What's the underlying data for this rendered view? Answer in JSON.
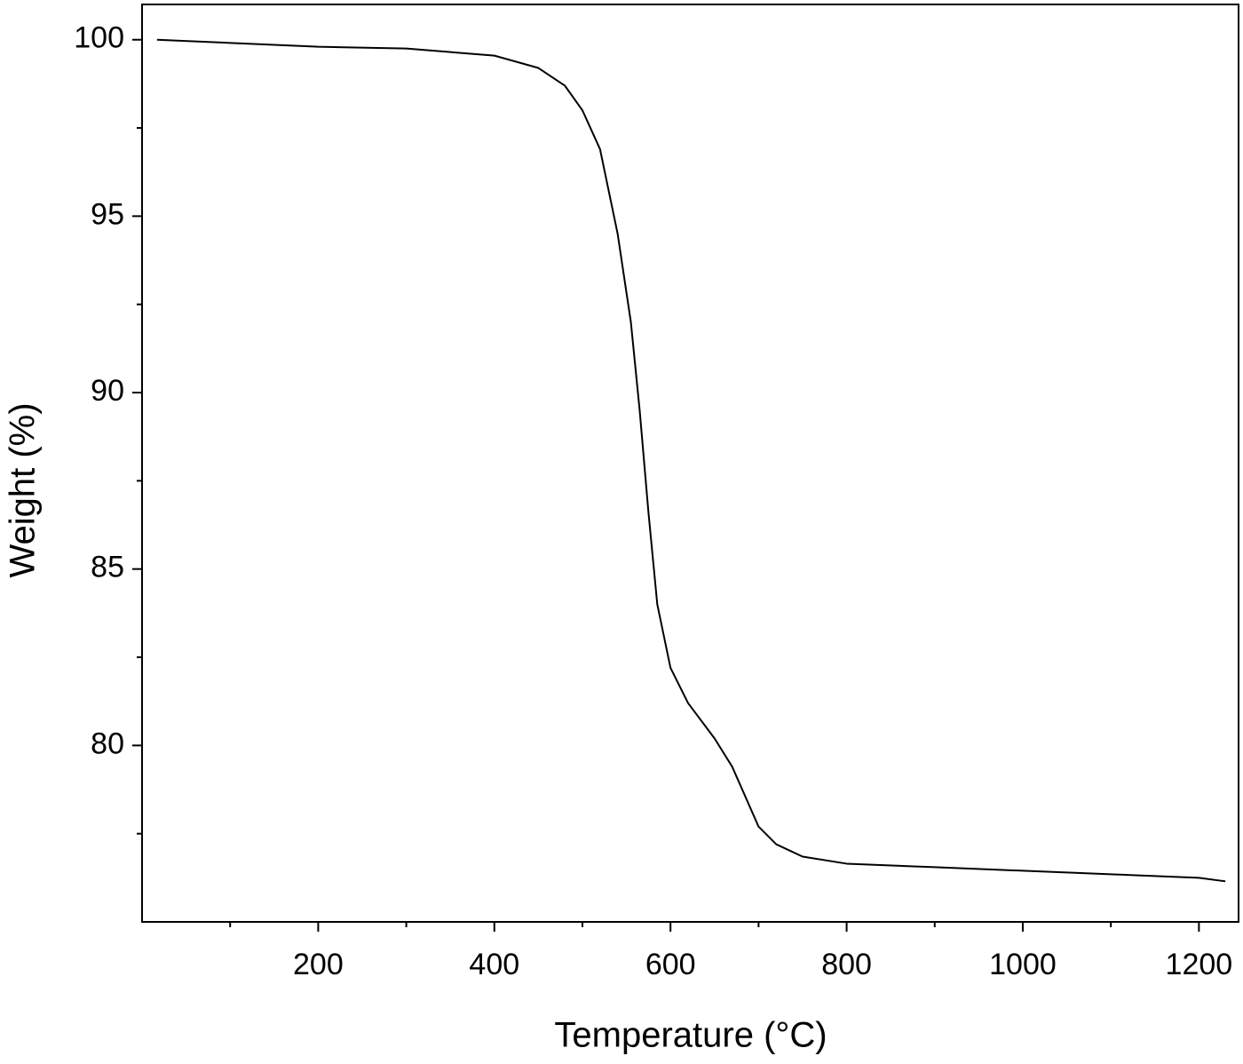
{
  "chart_data": {
    "type": "line",
    "x_label": "Temperature (°C)",
    "y_label": "Weight (%)",
    "xlim": [
      0,
      1245
    ],
    "ylim": [
      75,
      101
    ],
    "xticks": [
      200,
      400,
      600,
      800,
      1000,
      1200
    ],
    "yticks": [
      80,
      85,
      90,
      95,
      100
    ],
    "xminorticks": [
      100,
      300,
      500,
      700,
      900,
      1100
    ],
    "yminorticks": [
      77.5,
      82.5,
      87.5,
      92.5,
      97.5
    ],
    "grid": false,
    "series": [
      {
        "color": "#000000",
        "x": [
          17,
          200,
          300,
          400,
          450,
          480,
          500,
          520,
          540,
          555,
          565,
          575,
          585,
          600,
          620,
          650,
          670,
          700,
          720,
          750,
          800,
          900,
          1000,
          1100,
          1200,
          1230
        ],
        "values": [
          100.0,
          99.8,
          99.75,
          99.55,
          99.2,
          98.7,
          98.0,
          96.9,
          94.5,
          92.0,
          89.5,
          86.6,
          84.0,
          82.2,
          81.2,
          80.2,
          79.4,
          77.7,
          77.2,
          76.85,
          76.65,
          76.55,
          76.45,
          76.35,
          76.25,
          76.15
        ]
      }
    ]
  }
}
